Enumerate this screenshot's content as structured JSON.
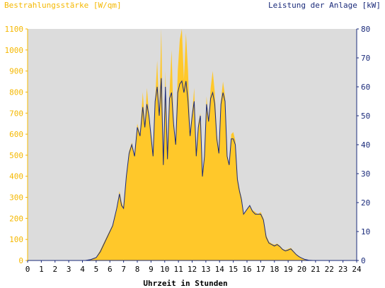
{
  "chart_data": {
    "type": "area",
    "title_left": "Bestrahlungsstärke [W/qm]",
    "title_right": "Leistung der Anlage [kW]",
    "xlabel": "Uhrzeit in Stunden",
    "x_ticks": [
      "0",
      "1",
      "2",
      "3",
      "4",
      "5",
      "6",
      "7",
      "8",
      "9",
      "10",
      "11",
      "12",
      "13",
      "14",
      "15",
      "16",
      "17",
      "18",
      "19",
      "20",
      "21",
      "22",
      "23",
      "24"
    ],
    "xlim": [
      0,
      24
    ],
    "y_left": {
      "label": "Bestrahlungsstärke [W/qm]",
      "ticks": [
        "0",
        "100",
        "200",
        "300",
        "400",
        "500",
        "600",
        "700",
        "800",
        "900",
        "1000",
        "1100"
      ],
      "ylim": [
        0,
        1100
      ],
      "color": "#f5b800"
    },
    "y_right": {
      "label": "Leistung der Anlage [kW]",
      "ticks": [
        "0",
        "10",
        "20",
        "30",
        "40",
        "50",
        "60",
        "70",
        "80"
      ],
      "ylim": [
        0,
        80
      ],
      "color": "#1a2a7a"
    },
    "grid": false,
    "background": "#dcdcdc",
    "series": [
      {
        "axis": "left",
        "kind": "area",
        "color": "#ffc82a",
        "points": [
          [
            0,
            0
          ],
          [
            4.2,
            0
          ],
          [
            4.6,
            5
          ],
          [
            5,
            15
          ],
          [
            5.3,
            50
          ],
          [
            5.6,
            90
          ],
          [
            5.9,
            130
          ],
          [
            6.2,
            170
          ],
          [
            6.5,
            250
          ],
          [
            6.7,
            330
          ],
          [
            6.85,
            280
          ],
          [
            7,
            250
          ],
          [
            7.2,
            400
          ],
          [
            7.4,
            520
          ],
          [
            7.6,
            560
          ],
          [
            7.8,
            500
          ],
          [
            8,
            650
          ],
          [
            8.2,
            600
          ],
          [
            8.4,
            800
          ],
          [
            8.55,
            650
          ],
          [
            8.7,
            820
          ],
          [
            8.85,
            700
          ],
          [
            9,
            600
          ],
          [
            9.15,
            500
          ],
          [
            9.3,
            760
          ],
          [
            9.45,
            950
          ],
          [
            9.6,
            700
          ],
          [
            9.75,
            1100
          ],
          [
            9.9,
            450
          ],
          [
            10.05,
            900
          ],
          [
            10.2,
            480
          ],
          [
            10.35,
            800
          ],
          [
            10.5,
            1000
          ],
          [
            10.65,
            650
          ],
          [
            10.8,
            560
          ],
          [
            10.95,
            900
          ],
          [
            11.1,
            1050
          ],
          [
            11.25,
            1100
          ],
          [
            11.4,
            860
          ],
          [
            11.55,
            1080
          ],
          [
            11.7,
            900
          ],
          [
            11.85,
            600
          ],
          [
            12,
            700
          ],
          [
            12.15,
            820
          ],
          [
            12.3,
            500
          ],
          [
            12.45,
            650
          ],
          [
            12.6,
            700
          ],
          [
            12.75,
            400
          ],
          [
            12.9,
            500
          ],
          [
            13.05,
            780
          ],
          [
            13.2,
            660
          ],
          [
            13.35,
            820
          ],
          [
            13.5,
            900
          ],
          [
            13.65,
            800
          ],
          [
            13.8,
            600
          ],
          [
            13.95,
            520
          ],
          [
            14.1,
            760
          ],
          [
            14.25,
            850
          ],
          [
            14.4,
            780
          ],
          [
            14.55,
            500
          ],
          [
            14.7,
            450
          ],
          [
            14.85,
            600
          ],
          [
            15,
            610
          ],
          [
            15.15,
            570
          ],
          [
            15.3,
            400
          ],
          [
            15.45,
            340
          ],
          [
            15.6,
            300
          ],
          [
            15.75,
            220
          ],
          [
            15.9,
            230
          ],
          [
            16.05,
            250
          ],
          [
            16.2,
            260
          ],
          [
            16.4,
            240
          ],
          [
            16.6,
            230
          ],
          [
            16.8,
            220
          ],
          [
            17,
            230
          ],
          [
            17.2,
            200
          ],
          [
            17.4,
            120
          ],
          [
            17.6,
            90
          ],
          [
            17.8,
            80
          ],
          [
            18,
            75
          ],
          [
            18.2,
            80
          ],
          [
            18.4,
            70
          ],
          [
            18.6,
            55
          ],
          [
            18.8,
            50
          ],
          [
            19,
            55
          ],
          [
            19.2,
            60
          ],
          [
            19.4,
            45
          ],
          [
            19.6,
            30
          ],
          [
            19.8,
            20
          ],
          [
            20,
            12
          ],
          [
            20.2,
            6
          ],
          [
            20.5,
            2
          ],
          [
            20.8,
            0
          ],
          [
            24,
            0
          ]
        ]
      },
      {
        "axis": "right",
        "kind": "line",
        "color": "#1a2a7a",
        "points": [
          [
            0,
            0
          ],
          [
            4.2,
            0
          ],
          [
            4.6,
            0.3
          ],
          [
            5,
            1
          ],
          [
            5.3,
            3
          ],
          [
            5.6,
            6
          ],
          [
            5.9,
            9
          ],
          [
            6.2,
            12
          ],
          [
            6.5,
            18
          ],
          [
            6.7,
            23
          ],
          [
            6.85,
            19
          ],
          [
            7,
            18
          ],
          [
            7.2,
            29
          ],
          [
            7.4,
            37
          ],
          [
            7.6,
            40
          ],
          [
            7.8,
            36
          ],
          [
            8,
            46
          ],
          [
            8.2,
            43
          ],
          [
            8.4,
            53
          ],
          [
            8.55,
            46
          ],
          [
            8.7,
            54
          ],
          [
            8.85,
            50
          ],
          [
            9,
            43
          ],
          [
            9.15,
            36
          ],
          [
            9.3,
            55
          ],
          [
            9.45,
            60
          ],
          [
            9.6,
            50
          ],
          [
            9.75,
            63
          ],
          [
            9.9,
            33
          ],
          [
            10.05,
            60
          ],
          [
            10.2,
            35
          ],
          [
            10.35,
            56
          ],
          [
            10.5,
            58
          ],
          [
            10.65,
            47
          ],
          [
            10.8,
            40
          ],
          [
            10.95,
            58
          ],
          [
            11.1,
            61
          ],
          [
            11.25,
            62
          ],
          [
            11.4,
            58
          ],
          [
            11.55,
            62
          ],
          [
            11.7,
            55
          ],
          [
            11.85,
            43
          ],
          [
            12,
            50
          ],
          [
            12.15,
            55
          ],
          [
            12.3,
            36
          ],
          [
            12.45,
            46
          ],
          [
            12.6,
            50
          ],
          [
            12.75,
            29
          ],
          [
            12.9,
            36
          ],
          [
            13.05,
            54
          ],
          [
            13.2,
            48
          ],
          [
            13.35,
            56
          ],
          [
            13.5,
            58
          ],
          [
            13.65,
            54
          ],
          [
            13.8,
            42
          ],
          [
            13.95,
            37
          ],
          [
            14.1,
            54
          ],
          [
            14.25,
            58
          ],
          [
            14.4,
            55
          ],
          [
            14.55,
            36
          ],
          [
            14.7,
            33
          ],
          [
            14.85,
            42
          ],
          [
            15,
            42
          ],
          [
            15.15,
            40
          ],
          [
            15.3,
            28
          ],
          [
            15.45,
            24
          ],
          [
            15.6,
            21
          ],
          [
            15.75,
            16
          ],
          [
            15.9,
            17
          ],
          [
            16.05,
            18
          ],
          [
            16.2,
            19
          ],
          [
            16.4,
            17
          ],
          [
            16.6,
            16
          ],
          [
            16.8,
            16
          ],
          [
            17,
            16
          ],
          [
            17.2,
            14
          ],
          [
            17.4,
            8
          ],
          [
            17.6,
            6
          ],
          [
            17.8,
            5.5
          ],
          [
            18,
            5
          ],
          [
            18.2,
            5.5
          ],
          [
            18.4,
            4.8
          ],
          [
            18.6,
            3.8
          ],
          [
            18.8,
            3.3
          ],
          [
            19,
            3.6
          ],
          [
            19.2,
            4
          ],
          [
            19.4,
            3
          ],
          [
            19.6,
            2
          ],
          [
            19.8,
            1.3
          ],
          [
            20,
            0.8
          ],
          [
            20.2,
            0.4
          ],
          [
            20.5,
            0.1
          ],
          [
            20.8,
            0
          ],
          [
            24,
            0
          ]
        ]
      }
    ]
  }
}
